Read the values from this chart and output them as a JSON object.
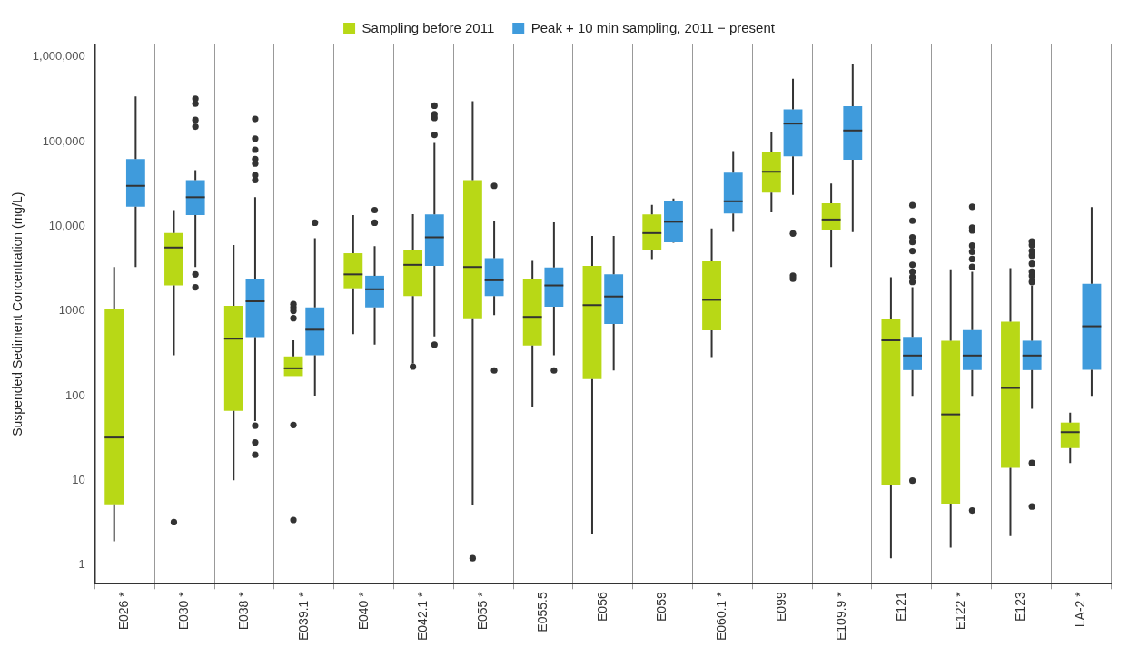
{
  "chart_data": {
    "type": "box",
    "ylabel": "Suspended Sediment Concentration (mg/L)",
    "categories": [
      "E026 *",
      "E030 *",
      "E038 *",
      "E039.1 *",
      "E040 *",
      "E042.1 *",
      "E055 *",
      "E055.5",
      "E056",
      "E059",
      "E060.1 *",
      "E099",
      "E109.9 *",
      "E121",
      "E122 *",
      "E123",
      "LA-2 *"
    ],
    "series": [
      {
        "name": "Sampling before 2011",
        "color": "#b8d816",
        "boxes": [
          {
            "low": 1.9,
            "q1": 5.2,
            "median": 32,
            "q3": 1050,
            "high": 3300
          },
          {
            "low": 300,
            "q1": 2000,
            "median": 5600,
            "q3": 8300,
            "high": 15500,
            "outliers": [
              3.2
            ]
          },
          {
            "low": 10,
            "q1": 66,
            "median": 470,
            "q3": 1150,
            "high": 6000
          },
          {
            "low": 170,
            "q1": 170,
            "median": 210,
            "q3": 290,
            "high": 450,
            "outliers": [
              3.4,
              45,
              820,
              1000,
              1100,
              1200
            ]
          },
          {
            "low": 530,
            "q1": 1850,
            "median": 2700,
            "q3": 4800,
            "high": 13500
          },
          {
            "low": 240,
            "q1": 1500,
            "median": 3500,
            "q3": 5300,
            "high": 13900,
            "outliers": [
              220
            ]
          },
          {
            "low": 5.1,
            "q1": 820,
            "median": 3300,
            "q3": 35000,
            "high": 300000,
            "outliers": [
              1.2
            ]
          },
          {
            "low": 73,
            "q1": 390,
            "median": 850,
            "q3": 2400,
            "high": 3900
          },
          {
            "low": 2.3,
            "q1": 157,
            "median": 1170,
            "q3": 3400,
            "high": 7700
          },
          {
            "low": 4100,
            "q1": 5200,
            "median": 8300,
            "q3": 13800,
            "high": 17900
          },
          {
            "low": 285,
            "q1": 590,
            "median": 1350,
            "q3": 3850,
            "high": 9400
          },
          {
            "low": 14600,
            "q1": 25000,
            "median": 44000,
            "q3": 75000,
            "high": 129000
          },
          {
            "low": 3300,
            "q1": 8900,
            "median": 12000,
            "q3": 18700,
            "high": 32000
          },
          {
            "low": 1.2,
            "q1": 8.9,
            "median": 450,
            "q3": 800,
            "high": 2500
          },
          {
            "low": 1.6,
            "q1": 5.3,
            "median": 60,
            "q3": 445,
            "high": 3100
          },
          {
            "low": 2.2,
            "q1": 14,
            "median": 123,
            "q3": 745,
            "high": 3200
          },
          {
            "low": 16,
            "q1": 24,
            "median": 37,
            "q3": 48,
            "high": 63
          }
        ]
      },
      {
        "name": "Peak + 10 min sampling, 2011 − present",
        "color": "#3f9bdc",
        "boxes": [
          {
            "low": 3300,
            "q1": 17000,
            "median": 30000,
            "q3": 62000,
            "high": 340000
          },
          {
            "low": 3300,
            "q1": 13500,
            "median": 22000,
            "q3": 35000,
            "high": 46000,
            "outliers": [
              1900,
              2700,
              150000,
              180000,
              280000,
              320000
            ]
          },
          {
            "low": 50,
            "q1": 490,
            "median": 1300,
            "q3": 2400,
            "high": 22000,
            "outliers": [
              20,
              28,
              44,
              35000,
              40000,
              55000,
              62000,
              80000,
              108000,
              185000
            ]
          },
          {
            "low": 100,
            "q1": 300,
            "median": 600,
            "q3": 1100,
            "high": 7200,
            "outliers": [
              11000
            ]
          },
          {
            "low": 400,
            "q1": 1100,
            "median": 1800,
            "q3": 2600,
            "high": 5800,
            "outliers": [
              11000,
              15500
            ]
          },
          {
            "low": 500,
            "q1": 3400,
            "median": 7400,
            "q3": 13800,
            "high": 96000,
            "outliers": [
              400,
              120000,
              190000,
              210000,
              265000
            ]
          },
          {
            "low": 890,
            "q1": 1500,
            "median": 2300,
            "q3": 4200,
            "high": 11400,
            "outliers": [
              198,
              30000
            ]
          },
          {
            "low": 300,
            "q1": 1120,
            "median": 2000,
            "q3": 3250,
            "high": 11100,
            "outliers": [
              198
            ]
          },
          {
            "low": 198,
            "q1": 700,
            "median": 1480,
            "q3": 2700,
            "high": 7700
          },
          {
            "low": 6400,
            "q1": 6450,
            "median": 11300,
            "q3": 20000,
            "high": 21200
          },
          {
            "low": 8600,
            "q1": 14100,
            "median": 19700,
            "q3": 43000,
            "high": 77000
          },
          {
            "low": 23500,
            "q1": 67000,
            "median": 163000,
            "q3": 240000,
            "high": 553000,
            "outliers": [
              2400,
              2600,
              8200
            ]
          },
          {
            "low": 8500,
            "q1": 61000,
            "median": 135000,
            "q3": 261000,
            "high": 813000
          },
          {
            "low": 99,
            "q1": 200,
            "median": 297,
            "q3": 493,
            "high": 1900,
            "outliers": [
              9.9,
              2200,
              2500,
              2900,
              3500,
              5100,
              6500,
              7400,
              11600,
              17700
            ]
          },
          {
            "low": 99,
            "q1": 200,
            "median": 297,
            "q3": 595,
            "high": 2900,
            "outliers": [
              4.4,
              3300,
              4100,
              5000,
              5900,
              8900,
              9600,
              17000
            ]
          },
          {
            "low": 70,
            "q1": 200,
            "median": 297,
            "q3": 445,
            "high": 2000,
            "outliers": [
              4.9,
              16,
              2200,
              2600,
              2900,
              3600,
              4500,
              5100,
              6000,
              6600
            ]
          },
          {
            "low": 99,
            "q1": 202,
            "median": 658,
            "q3": 2090,
            "high": 16800
          }
        ]
      }
    ],
    "ylim": [
      0.6,
      1400000
    ],
    "yticks": [
      1,
      10,
      100,
      1000,
      {
        "value": 10000,
        "label": "10,000"
      },
      {
        "value": 100000,
        "label": "100,000"
      },
      {
        "value": 1000000,
        "label": "1,000,000"
      }
    ],
    "log": "y",
    "grid": "x",
    "legend": "top"
  }
}
